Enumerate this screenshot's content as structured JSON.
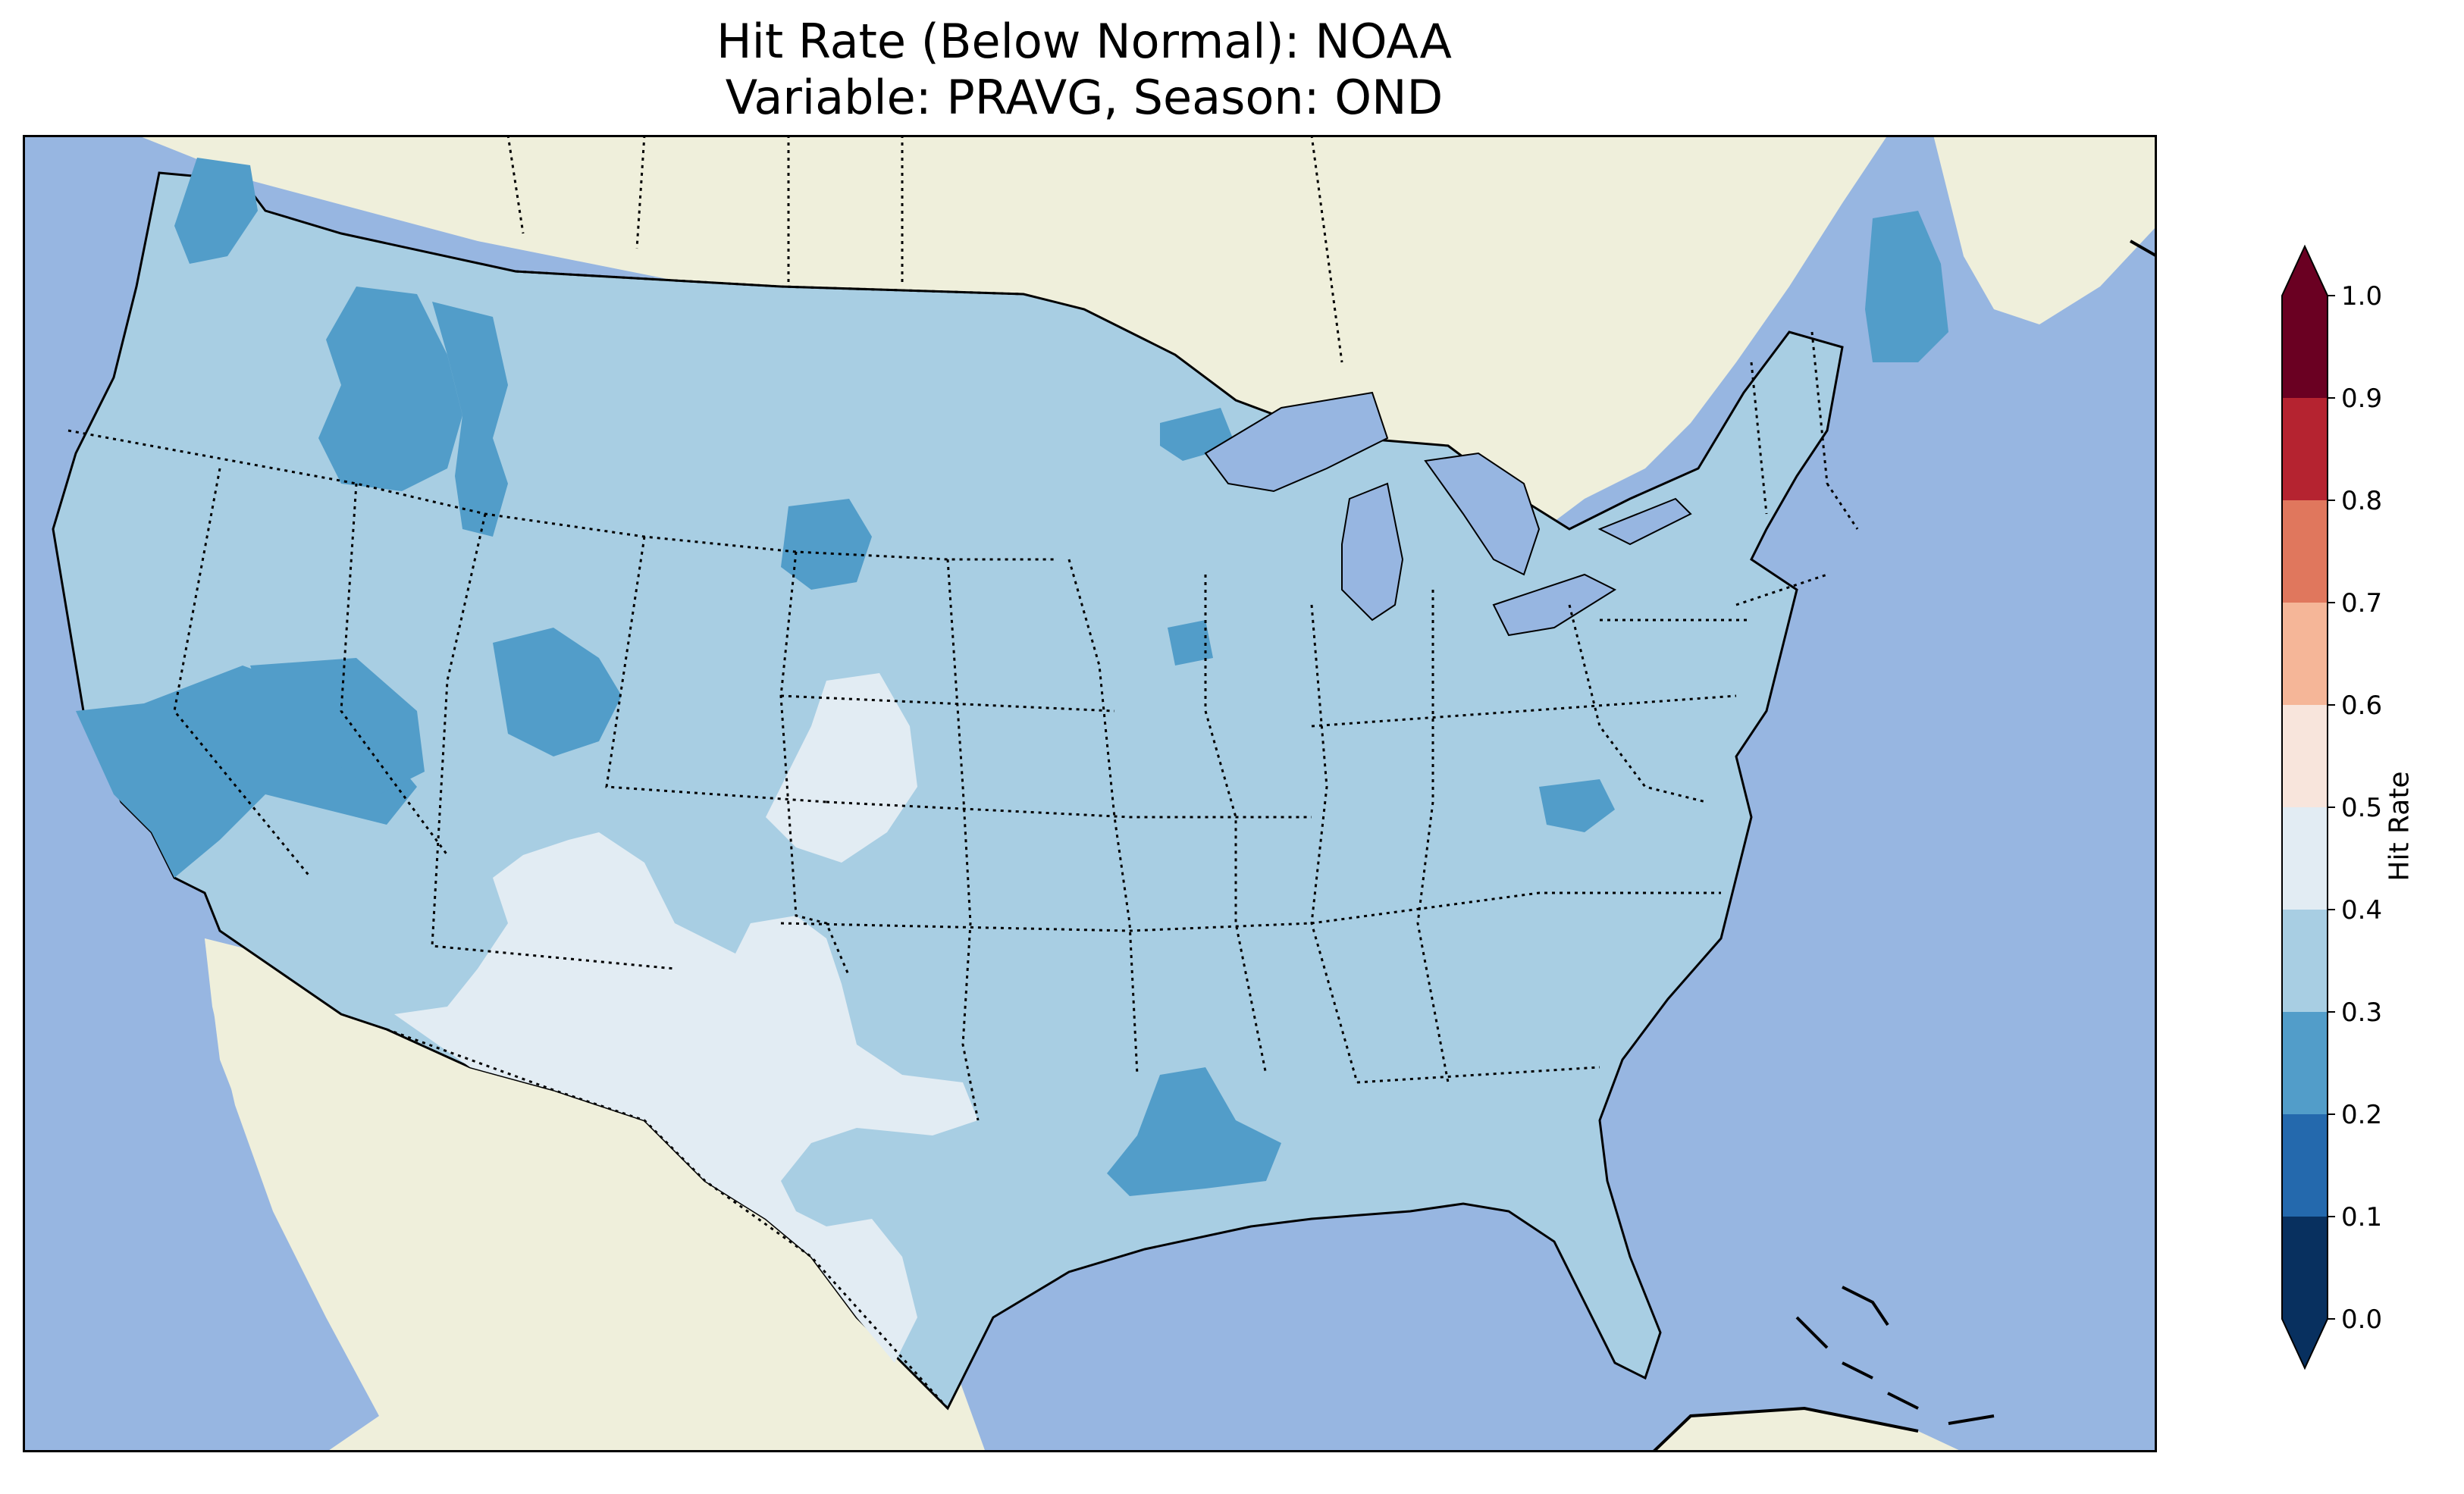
{
  "title": {
    "line1": "Hit Rate (Below Normal): NOAA",
    "line2": "Variable: PRAVG, Season: OND"
  },
  "colorbar": {
    "label": "Hit Rate",
    "ticks": [
      "0.0",
      "0.1",
      "0.2",
      "0.3",
      "0.4",
      "0.5",
      "0.6",
      "0.7",
      "0.8",
      "0.9",
      "1.0"
    ],
    "colors": [
      "#053061",
      "#2166ac",
      "#4393c3",
      "#92c5de",
      "#d1e5f0",
      "#f7f7f7",
      "#fddbc7",
      "#f4a582",
      "#d6604d",
      "#b2182b",
      "#67001f"
    ],
    "band_colors_displayed": [
      "#08305f",
      "#2469ad",
      "#529dc9",
      "#a8cee3",
      "#e2ecf3",
      "#f8e5dc",
      "#f5b698",
      "#e0775d",
      "#b52330",
      "#6a0022"
    ]
  },
  "map": {
    "ocean_color": "#97b6e1",
    "land_color": "#efefdb",
    "lakes_color": "#97b6e1",
    "regions": [
      {
        "name": "northwest",
        "hit_rate_band": "0.2-0.3"
      },
      {
        "name": "idaho",
        "hit_rate_band": "0.2-0.3"
      },
      {
        "name": "northern-california",
        "hit_rate_band": "0.2-0.3"
      },
      {
        "name": "central-conus",
        "hit_rate_band": "0.3-0.4"
      },
      {
        "name": "new-mexico-west-texas",
        "hit_rate_band": "0.4-0.5"
      },
      {
        "name": "eastern-colorado",
        "hit_rate_band": "0.4-0.5"
      },
      {
        "name": "louisiana",
        "hit_rate_band": "0.2-0.3"
      },
      {
        "name": "maine",
        "hit_rate_band": "0.2-0.3"
      }
    ]
  }
}
